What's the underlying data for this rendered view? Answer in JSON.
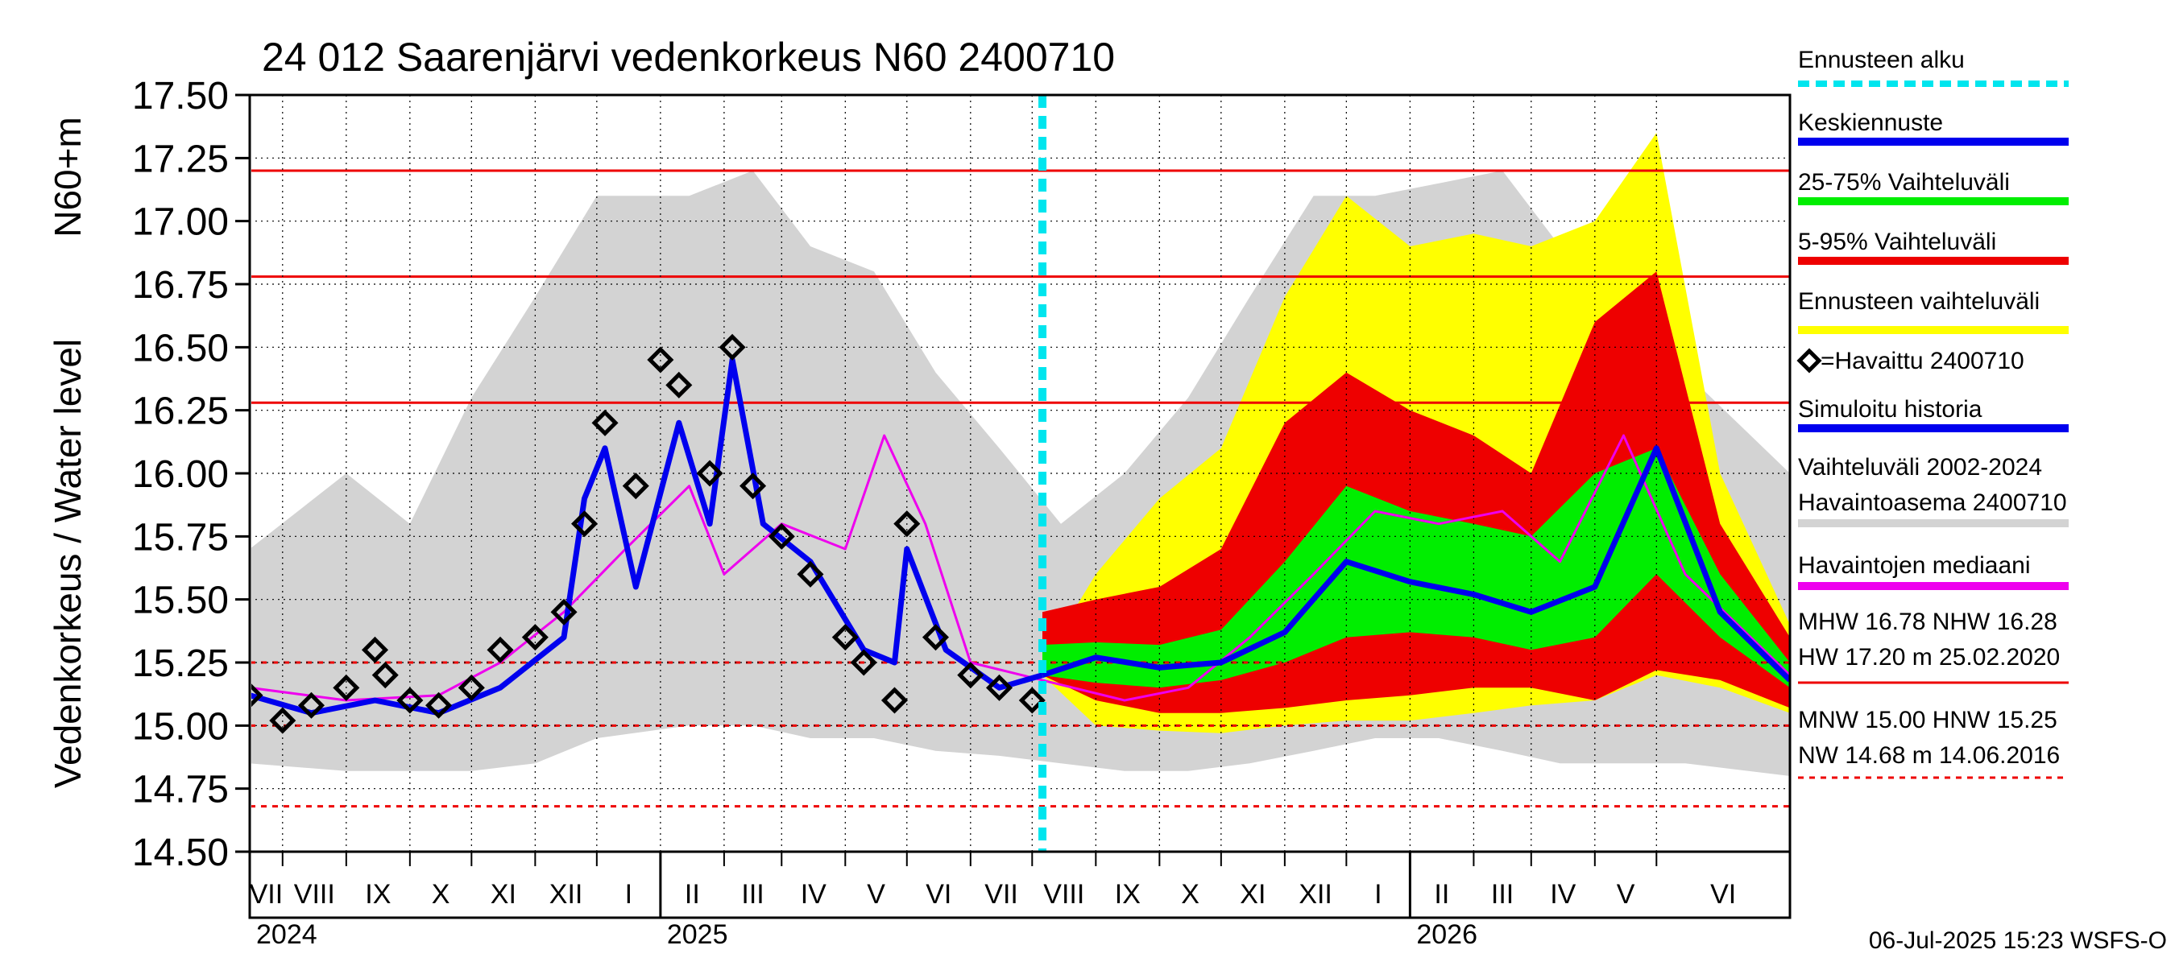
{
  "chart_data": {
    "type": "line",
    "title": "24 012 Saarenjärvi vedenkorkeus N60 2400710",
    "ylabel_top": "N60+m",
    "ylabel": "Vedenkorkeus / Water level",
    "ylim": [
      14.5,
      17.5
    ],
    "yticks": [
      "17.50",
      "17.25",
      "17.00",
      "16.75",
      "16.50",
      "16.25",
      "16.00",
      "15.75",
      "15.50",
      "15.25",
      "15.00",
      "14.75",
      "14.50"
    ],
    "x_start": "2024-06-15",
    "x_end": "2026-07-05",
    "forecast_start": "2025-07-06",
    "months": [
      "VII",
      "VIII",
      "IX",
      "X",
      "XI",
      "XII",
      "I",
      "II",
      "III",
      "IV",
      "V",
      "VI",
      "VII",
      "VIII",
      "IX",
      "X",
      "XI",
      "XII",
      "I",
      "II",
      "III",
      "IV",
      "V",
      "VI"
    ],
    "years": [
      "2024",
      "2025",
      "2026"
    ],
    "reference_levels": [
      {
        "name": "HW",
        "value": 17.2,
        "style": "solid"
      },
      {
        "name": "MHW",
        "value": 16.78,
        "style": "solid"
      },
      {
        "name": "NHW",
        "value": 16.28,
        "style": "solid"
      },
      {
        "name": "HNW",
        "value": 15.25,
        "style": "dashed"
      },
      {
        "name": "MNW",
        "value": 15.0,
        "style": "dashed"
      },
      {
        "name": "NW",
        "value": 14.68,
        "style": "dashed"
      }
    ],
    "legend": [
      {
        "label": "Ennusteen alku",
        "color": "#00e5ee",
        "style": "dotted"
      },
      {
        "label": "Keskiennuste",
        "color": "#0000ee",
        "style": "solid"
      },
      {
        "label": "25-75% Vaihteluväli",
        "color": "#00ee00",
        "style": "solid"
      },
      {
        "label": "5-95% Vaihteluväli",
        "color": "#ee0000",
        "style": "solid"
      },
      {
        "label": "Ennusteen vaihteluväli",
        "color": "#ffff00",
        "style": "solid"
      },
      {
        "label": "=Havaittu 2400710",
        "color": "#000000",
        "style": "marker"
      },
      {
        "label": "Simuloitu historia",
        "color": "#0000ee",
        "style": "solid"
      },
      {
        "label": "Vaihteluväli 2002-2024",
        "label2": " Havaintoasema 2400710",
        "color": "#d3d3d3",
        "style": "solid"
      },
      {
        "label": "Havaintojen mediaani",
        "color": "#ee00ee",
        "style": "solid"
      }
    ],
    "stats_block_1": [
      "MHW  16.78 NHW  16.28",
      "HW  17.20 m 25.02.2020"
    ],
    "stats_block_2": [
      "MNW  15.00 HNW  15.25",
      "NW  14.68 m 14.06.2016"
    ],
    "footer": "06-Jul-2025 15:23 WSFS-O",
    "colors": {
      "history_range": "#d3d3d3",
      "forecast_range": "#ffff00",
      "p5_95": "#ee0000",
      "p25_75": "#00ee00",
      "mean_forecast": "#0000ee",
      "simulated": "#0000ee",
      "median": "#ee00ee",
      "observed": "#000000",
      "forecast_start": "#00e5ee",
      "ref_line": "#ee0000"
    },
    "series": [
      {
        "name": "Vaihteluväli 2002-2024",
        "kind": "band",
        "x": [
          "2024-06-15",
          "2024-08-01",
          "2024-09-01",
          "2024-10-01",
          "2024-11-01",
          "2024-12-01",
          "2025-01-15",
          "2025-02-15",
          "2025-03-15",
          "2025-04-15",
          "2025-05-15",
          "2025-06-15",
          "2025-07-15",
          "2025-08-15",
          "2025-09-15",
          "2025-10-15",
          "2025-11-15",
          "2025-12-15",
          "2026-01-15",
          "2026-02-15",
          "2026-03-15",
          "2026-04-15",
          "2026-05-15",
          "2026-07-05"
        ],
        "low": [
          14.85,
          14.82,
          14.82,
          14.82,
          14.85,
          14.95,
          15.0,
          15.0,
          14.95,
          14.95,
          14.9,
          14.88,
          14.85,
          14.82,
          14.82,
          14.85,
          14.9,
          14.95,
          14.95,
          14.9,
          14.85,
          14.85,
          14.85,
          14.8
        ],
        "high": [
          15.7,
          16.0,
          15.8,
          16.3,
          16.7,
          17.1,
          17.1,
          17.2,
          16.9,
          16.8,
          16.4,
          16.1,
          15.8,
          16.0,
          16.3,
          16.7,
          17.1,
          17.1,
          17.15,
          17.2,
          16.9,
          16.85,
          16.4,
          16.0
        ]
      },
      {
        "name": "Ennusteen vaihteluväli",
        "kind": "band",
        "x": [
          "2025-07-06",
          "2025-08-01",
          "2025-09-01",
          "2025-10-01",
          "2025-11-01",
          "2025-12-01",
          "2026-01-01",
          "2026-02-01",
          "2026-03-01",
          "2026-04-01",
          "2026-05-01",
          "2026-06-01",
          "2026-07-05"
        ],
        "low": [
          15.2,
          15.0,
          14.98,
          14.97,
          15.0,
          15.02,
          15.02,
          15.05,
          15.08,
          15.1,
          15.2,
          15.15,
          15.05
        ],
        "high": [
          15.25,
          15.6,
          15.9,
          16.1,
          16.7,
          17.1,
          16.9,
          16.95,
          16.9,
          17.0,
          17.35,
          16.0,
          15.4
        ]
      },
      {
        "name": "5-95% Vaihteluväli",
        "kind": "band",
        "x": [
          "2025-07-06",
          "2025-08-01",
          "2025-09-01",
          "2025-10-01",
          "2025-11-01",
          "2025-12-01",
          "2026-01-01",
          "2026-02-01",
          "2026-03-01",
          "2026-04-01",
          "2026-05-01",
          "2026-06-01",
          "2026-07-05"
        ],
        "low": [
          15.2,
          15.1,
          15.05,
          15.05,
          15.07,
          15.1,
          15.12,
          15.15,
          15.15,
          15.1,
          15.22,
          15.18,
          15.07
        ],
        "high": [
          15.45,
          15.5,
          15.55,
          15.7,
          16.2,
          16.4,
          16.25,
          16.15,
          16.0,
          16.6,
          16.8,
          15.8,
          15.35
        ]
      },
      {
        "name": "25-75% Vaihteluväli",
        "kind": "band",
        "x": [
          "2025-07-06",
          "2025-08-01",
          "2025-09-01",
          "2025-10-01",
          "2025-11-01",
          "2025-12-01",
          "2026-01-01",
          "2026-02-01",
          "2026-03-01",
          "2026-04-01",
          "2026-05-01",
          "2026-06-01",
          "2026-07-05"
        ],
        "low": [
          15.2,
          15.17,
          15.15,
          15.18,
          15.25,
          15.35,
          15.37,
          15.35,
          15.3,
          15.35,
          15.6,
          15.35,
          15.15
        ],
        "high": [
          15.32,
          15.33,
          15.32,
          15.38,
          15.65,
          15.95,
          15.85,
          15.8,
          15.75,
          16.0,
          16.1,
          15.6,
          15.25
        ]
      },
      {
        "name": "Havaintojen mediaani",
        "kind": "line",
        "x": [
          "2024-06-15",
          "2024-08-01",
          "2024-09-15",
          "2024-10-15",
          "2024-11-15",
          "2024-12-15",
          "2025-01-15",
          "2025-02-01",
          "2025-03-01",
          "2025-04-01",
          "2025-04-20",
          "2025-05-10",
          "2025-06-01",
          "2025-07-06",
          "2025-08-15",
          "2025-09-15",
          "2025-10-15",
          "2025-11-15",
          "2025-12-15",
          "2026-01-15",
          "2026-02-15",
          "2026-03-15",
          "2026-04-15",
          "2026-05-15",
          "2026-07-05"
        ],
        "y": [
          15.15,
          15.1,
          15.12,
          15.25,
          15.45,
          15.7,
          15.95,
          15.6,
          15.8,
          15.7,
          16.15,
          15.8,
          15.25,
          15.18,
          15.1,
          15.15,
          15.35,
          15.6,
          15.85,
          15.8,
          15.85,
          15.65,
          16.15,
          15.6,
          15.2
        ]
      },
      {
        "name": "Simuloitu historia",
        "kind": "line",
        "x": [
          "2024-06-15",
          "2024-07-15",
          "2024-08-15",
          "2024-09-15",
          "2024-10-15",
          "2024-11-15",
          "2024-11-25",
          "2024-12-05",
          "2024-12-20",
          "2025-01-10",
          "2025-01-25",
          "2025-02-05",
          "2025-02-20",
          "2025-03-15",
          "2025-04-10",
          "2025-04-25",
          "2025-05-01",
          "2025-05-20",
          "2025-06-15",
          "2025-07-06"
        ],
        "y": [
          15.12,
          15.05,
          15.1,
          15.05,
          15.15,
          15.35,
          15.9,
          16.1,
          15.55,
          16.2,
          15.8,
          16.45,
          15.8,
          15.65,
          15.3,
          15.25,
          15.7,
          15.3,
          15.15,
          15.2
        ]
      },
      {
        "name": "Keskiennuste",
        "kind": "line",
        "x": [
          "2025-07-06",
          "2025-08-01",
          "2025-09-01",
          "2025-10-01",
          "2025-11-01",
          "2025-12-01",
          "2026-01-01",
          "2026-02-01",
          "2026-03-01",
          "2026-04-01",
          "2026-05-01",
          "2026-06-01",
          "2026-07-05"
        ],
        "y": [
          15.2,
          15.27,
          15.23,
          15.25,
          15.37,
          15.65,
          15.57,
          15.52,
          15.45,
          15.55,
          16.1,
          15.45,
          15.18
        ]
      },
      {
        "name": "Havaittu 2400710",
        "kind": "markers",
        "x": [
          "2024-06-15",
          "2024-07-01",
          "2024-07-15",
          "2024-08-01",
          "2024-08-15",
          "2024-08-20",
          "2024-09-01",
          "2024-09-15",
          "2024-10-01",
          "2024-10-15",
          "2024-11-01",
          "2024-11-15",
          "2024-11-25",
          "2024-12-05",
          "2024-12-20",
          "2025-01-01",
          "2025-01-10",
          "2025-01-25",
          "2025-02-05",
          "2025-02-15",
          "2025-03-01",
          "2025-03-15",
          "2025-04-01",
          "2025-04-10",
          "2025-04-25",
          "2025-05-01",
          "2025-05-15",
          "2025-06-01",
          "2025-06-15",
          "2025-07-01"
        ],
        "y": [
          15.12,
          15.02,
          15.08,
          15.15,
          15.3,
          15.2,
          15.1,
          15.08,
          15.15,
          15.3,
          15.35,
          15.45,
          15.8,
          16.2,
          15.95,
          16.45,
          16.35,
          16.0,
          16.5,
          15.95,
          15.75,
          15.6,
          15.35,
          15.25,
          15.1,
          15.8,
          15.35,
          15.2,
          15.15,
          15.1
        ]
      }
    ]
  }
}
